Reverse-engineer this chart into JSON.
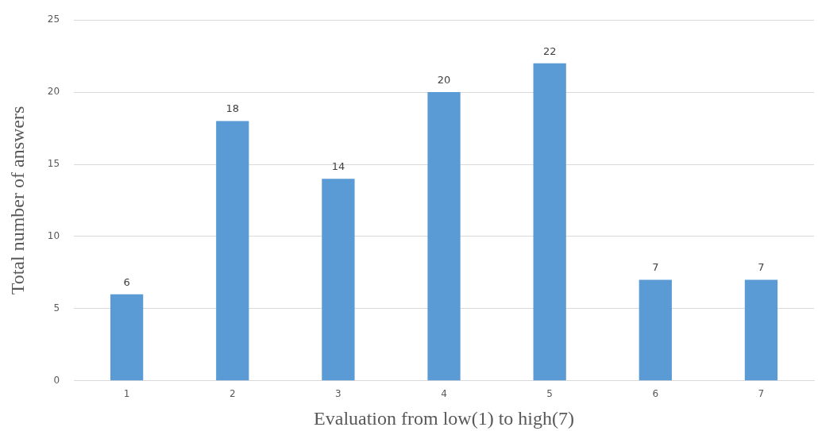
{
  "chart_data": {
    "type": "bar",
    "xlabel": "Evaluation from low(1) to high(7)",
    "ylabel": "Total number of answers",
    "categories": [
      "1",
      "2",
      "3",
      "4",
      "5",
      "6",
      "7"
    ],
    "values": [
      6,
      18,
      14,
      20,
      22,
      7,
      7
    ],
    "color": "#5b9bd5",
    "ylim": [
      0,
      25
    ],
    "yticks": [
      0,
      5,
      10,
      15,
      20,
      25
    ],
    "grid": "y",
    "data_labels": true,
    "legend": false
  }
}
